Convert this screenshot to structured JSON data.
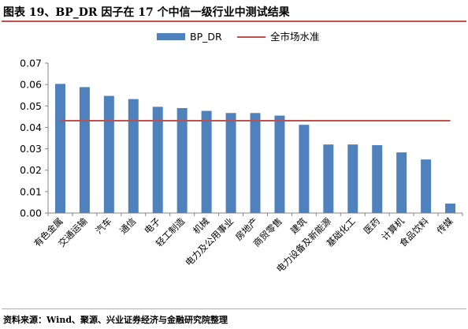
{
  "figure": {
    "title": "图表 19、BP_DR 因子在 17 个中信一级行业中测试结果",
    "source": "资料来源：Wind、聚源、兴业证券经济与金融研究院整理"
  },
  "colors": {
    "bar": "#4f81bd",
    "line": "#c0504d",
    "title_rule": "#c0504d"
  },
  "chart_data": {
    "type": "bar",
    "title": "",
    "xlabel": "",
    "ylabel": "",
    "ylim": [
      0,
      0.07
    ],
    "yticks": [
      "0.00",
      "0.01",
      "0.02",
      "0.03",
      "0.04",
      "0.05",
      "0.06",
      "0.07"
    ],
    "grid": false,
    "legend_position": "top",
    "categories": [
      "有色金属",
      "交通运输",
      "汽车",
      "通信",
      "电子",
      "轻工制造",
      "机械",
      "电力及公用事业",
      "房地产",
      "商贸零售",
      "建筑",
      "电力设备及新能源",
      "基础化工",
      "医药",
      "计算机",
      "食品饮料",
      "传媒"
    ],
    "series": [
      {
        "name": "BP_DR",
        "type": "bar",
        "values": [
          0.0603,
          0.0588,
          0.0547,
          0.0532,
          0.0496,
          0.049,
          0.0477,
          0.0467,
          0.0467,
          0.0455,
          0.0412,
          0.032,
          0.032,
          0.0317,
          0.0283,
          0.025,
          0.0044
        ]
      },
      {
        "name": "全市场水准",
        "type": "line",
        "value": 0.0431
      }
    ]
  }
}
